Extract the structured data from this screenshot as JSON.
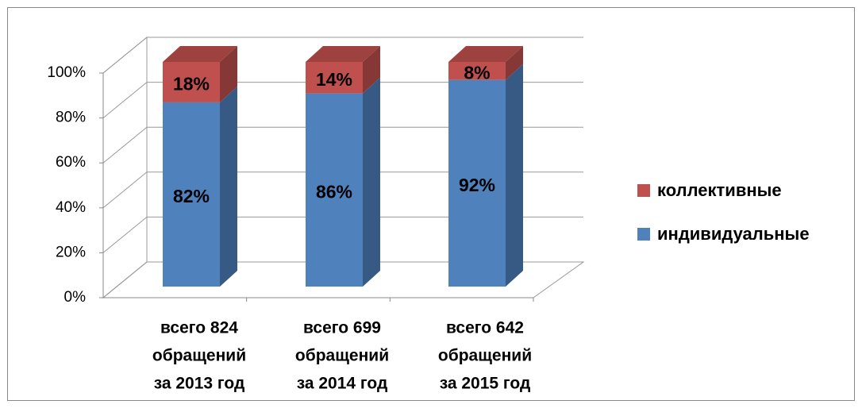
{
  "chart_data": {
    "type": "bar3d_stacked",
    "categories": [
      [
        "всего 824",
        "обращений",
        "за 2013 год"
      ],
      [
        "всего 699",
        "обращений",
        "за 2014 год"
      ],
      [
        "всего 642",
        "обращений",
        "за 2015 год"
      ]
    ],
    "series": [
      {
        "name": "индивидуальные",
        "color": "#4f81bd",
        "values": [
          82,
          86,
          92
        ],
        "value_labels": [
          "82%",
          "86%",
          "92%"
        ]
      },
      {
        "name": "коллективные",
        "color": "#c0504d",
        "values": [
          18,
          14,
          8
        ],
        "value_labels": [
          "18%",
          "14%",
          "8%"
        ]
      }
    ],
    "ylim": [
      0,
      100
    ],
    "yticks": [
      {
        "value": 0,
        "label": "0%"
      },
      {
        "value": 20,
        "label": "20%"
      },
      {
        "value": 40,
        "label": "40%"
      },
      {
        "value": 60,
        "label": "60%"
      },
      {
        "value": 80,
        "label": "80%"
      },
      {
        "value": 100,
        "label": "100%"
      }
    ],
    "grid": true,
    "legend": "right"
  }
}
